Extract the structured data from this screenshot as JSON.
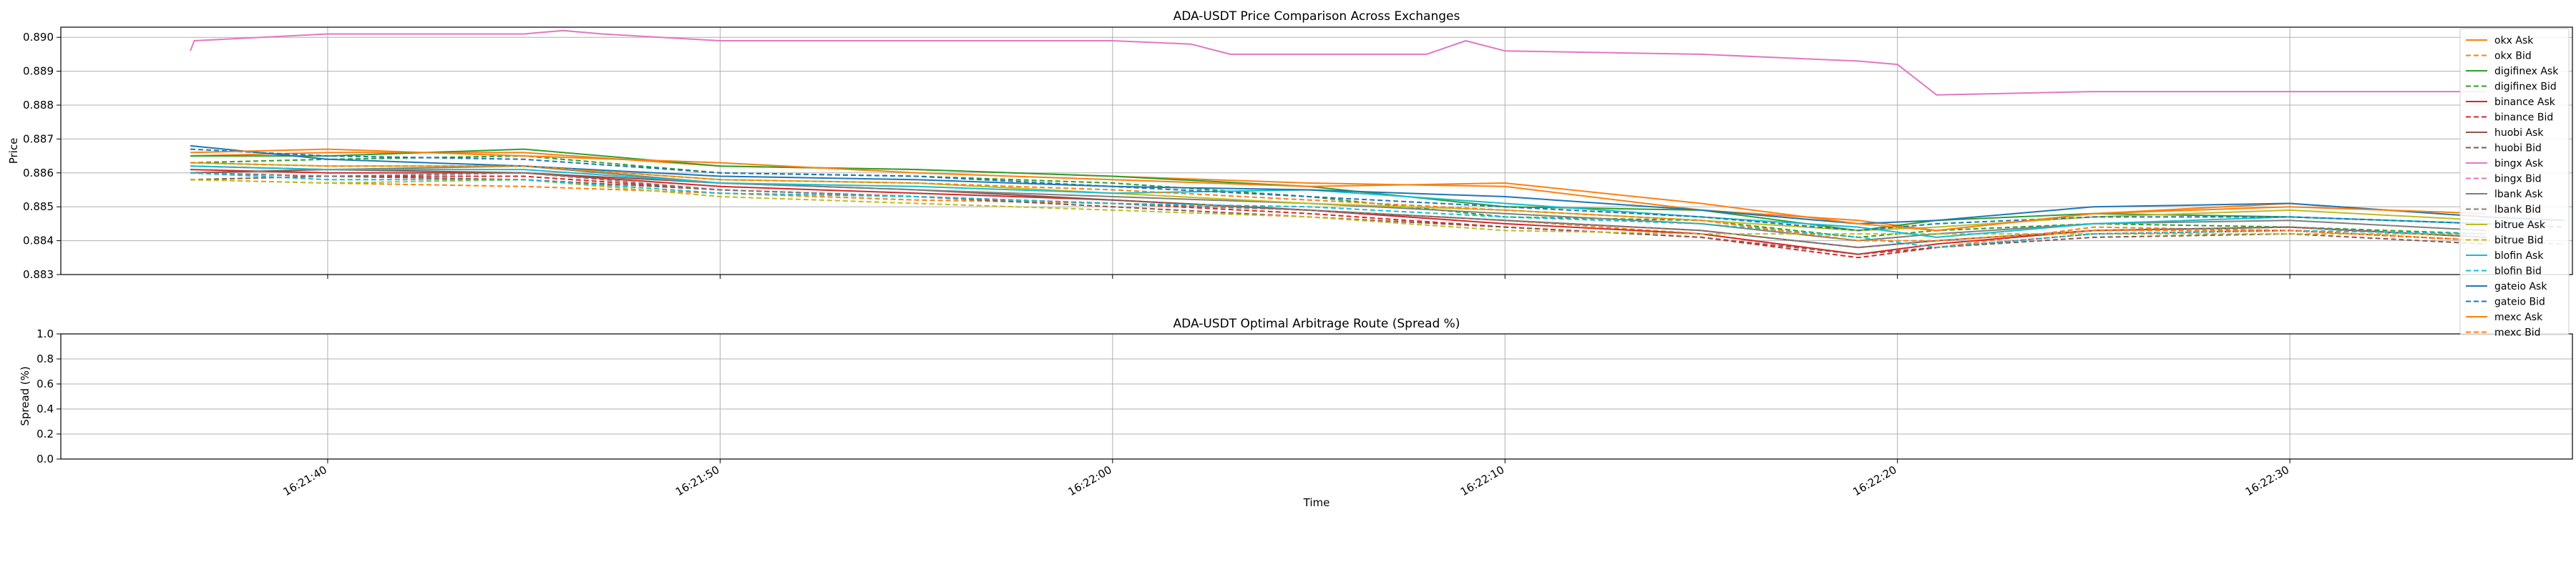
{
  "chart_data": [
    {
      "type": "line",
      "title": "ADA-USDT Price Comparison Across Exchanges",
      "xlabel": "",
      "ylabel": "Price",
      "xlim": [
        "16:21:33.2",
        "16:22:37.2"
      ],
      "ylim": [
        0.883,
        0.8903
      ],
      "yticks": [
        0.883,
        0.884,
        0.885,
        0.886,
        0.887,
        0.888,
        0.889,
        0.89
      ],
      "ytick_labels": [
        "0.883",
        "0.884",
        "0.885",
        "0.886",
        "0.887",
        "0.888",
        "0.889",
        "0.890"
      ],
      "xticks": [
        "16:21:40",
        "16:21:50",
        "16:22:00",
        "16:22:10",
        "16:22:20",
        "16:22:30"
      ],
      "grid": true,
      "legend_position": "top-right",
      "series": [
        {
          "name": "okx Ask",
          "color": "#ff7f0e",
          "dash": false,
          "x": [
            "16:21:36.5",
            "16:21:40",
            "16:21:45",
            "16:21:50",
            "16:21:55",
            "16:22:00",
            "16:22:05",
            "16:22:10",
            "16:22:15",
            "16:22:19",
            "16:22:21",
            "16:22:25",
            "16:22:30",
            "16:22:35"
          ],
          "y": [
            0.8865,
            0.8866,
            0.8866,
            0.8862,
            0.8861,
            0.8859,
            0.8857,
            0.8856,
            0.8849,
            0.8846,
            0.8843,
            0.8848,
            0.8851,
            0.8847
          ]
        },
        {
          "name": "okx Bid",
          "color": "#ff7f0e",
          "dash": true,
          "x": [
            "16:21:36.5",
            "16:21:40",
            "16:21:45",
            "16:21:50",
            "16:21:55",
            "16:22:00",
            "16:22:05",
            "16:22:10",
            "16:22:15",
            "16:22:19",
            "16:22:21",
            "16:22:25",
            "16:22:30",
            "16:22:35"
          ],
          "y": [
            0.8858,
            0.8857,
            0.8856,
            0.8854,
            0.8852,
            0.8851,
            0.8849,
            0.8846,
            0.8842,
            0.8836,
            0.8838,
            0.8844,
            0.8843,
            0.884
          ]
        },
        {
          "name": "digifinex Ask",
          "color": "#2ca02c",
          "dash": false,
          "x": [
            "16:21:36.5",
            "16:21:40",
            "16:21:45",
            "16:21:50",
            "16:21:55",
            "16:22:00",
            "16:22:05",
            "16:22:10",
            "16:22:15",
            "16:22:19",
            "16:22:21",
            "16:22:25",
            "16:22:30",
            "16:22:35"
          ],
          "y": [
            0.8865,
            0.8865,
            0.8867,
            0.8862,
            0.8861,
            0.8859,
            0.8856,
            0.885,
            0.8849,
            0.8843,
            0.8846,
            0.8848,
            0.8847,
            0.8845
          ]
        },
        {
          "name": "digifinex Bid",
          "color": "#2ca02c",
          "dash": true,
          "x": [
            "16:21:36.5",
            "16:21:40",
            "16:21:45",
            "16:21:50",
            "16:21:55",
            "16:22:00",
            "16:22:05",
            "16:22:10",
            "16:22:15",
            "16:22:19",
            "16:22:21",
            "16:22:25",
            "16:22:30",
            "16:22:35"
          ],
          "y": [
            0.8863,
            0.8864,
            0.8865,
            0.886,
            0.8859,
            0.8857,
            0.8853,
            0.8847,
            0.8846,
            0.8841,
            0.8843,
            0.8845,
            0.8844,
            0.8842
          ]
        },
        {
          "name": "binance Ask",
          "color": "#d62728",
          "dash": false,
          "x": [
            "16:21:36.5",
            "16:21:40",
            "16:21:45",
            "16:21:50",
            "16:21:55",
            "16:22:00",
            "16:22:05",
            "16:22:10",
            "16:22:15",
            "16:22:19",
            "16:22:21",
            "16:22:25",
            "16:22:30",
            "16:22:35"
          ],
          "y": [
            0.8861,
            0.886,
            0.886,
            0.8856,
            0.8854,
            0.8852,
            0.8849,
            0.8845,
            0.8842,
            0.8836,
            0.8839,
            0.8843,
            0.8844,
            0.8841
          ]
        },
        {
          "name": "binance Bid",
          "color": "#d62728",
          "dash": true,
          "x": [
            "16:21:36.5",
            "16:21:40",
            "16:21:45",
            "16:21:50",
            "16:21:55",
            "16:22:00",
            "16:22:05",
            "16:22:10",
            "16:22:15",
            "16:22:19",
            "16:22:21",
            "16:22:25",
            "16:22:30",
            "16:22:35"
          ],
          "y": [
            0.886,
            0.8859,
            0.8859,
            0.8855,
            0.8853,
            0.8851,
            0.8848,
            0.8844,
            0.8841,
            0.8835,
            0.8838,
            0.8842,
            0.8843,
            0.884
          ]
        },
        {
          "name": "huobi Ask",
          "color": "#8c564b",
          "dash": false,
          "x": [
            "16:21:36.5",
            "16:21:40",
            "16:21:45",
            "16:21:50",
            "16:21:55",
            "16:22:00",
            "16:22:05",
            "16:22:10",
            "16:22:15",
            "16:22:19",
            "16:22:21",
            "16:22:25",
            "16:22:30",
            "16:22:35"
          ],
          "y": [
            0.886,
            0.8861,
            0.886,
            0.8857,
            0.8855,
            0.8852,
            0.8849,
            0.8846,
            0.8843,
            0.8838,
            0.884,
            0.8843,
            0.8844,
            0.8841
          ]
        },
        {
          "name": "huobi Bid",
          "color": "#8c564b",
          "dash": true,
          "x": [
            "16:21:36.5",
            "16:21:40",
            "16:21:45",
            "16:21:50",
            "16:21:55",
            "16:22:00",
            "16:22:05",
            "16:22:10",
            "16:22:15",
            "16:22:19",
            "16:22:21",
            "16:22:25",
            "16:22:30",
            "16:22:35"
          ],
          "y": [
            0.8858,
            0.8859,
            0.8858,
            0.8855,
            0.8853,
            0.885,
            0.8847,
            0.8844,
            0.8841,
            0.8836,
            0.8838,
            0.8841,
            0.8842,
            0.8839
          ]
        },
        {
          "name": "bingx Ask",
          "color": "#e377c2",
          "dash": false,
          "x": [
            "16:21:36.5",
            "16:21:36.6",
            "16:21:40",
            "16:21:45",
            "16:21:46",
            "16:21:47",
            "16:21:50",
            "16:22:00",
            "16:22:02",
            "16:22:03",
            "16:22:05",
            "16:22:08",
            "16:22:09",
            "16:22:10",
            "16:22:15",
            "16:22:19",
            "16:22:20",
            "16:22:21",
            "16:22:25",
            "16:22:35"
          ],
          "y": [
            0.8896,
            0.8899,
            0.8901,
            0.8901,
            0.8902,
            0.8901,
            0.8899,
            0.8899,
            0.8898,
            0.8895,
            0.8895,
            0.8895,
            0.8899,
            0.8896,
            0.8895,
            0.8893,
            0.8892,
            0.8883,
            0.8884,
            0.8884
          ]
        },
        {
          "name": "bingx Bid",
          "color": "#e377c2",
          "dash": true,
          "x": [],
          "y": []
        },
        {
          "name": "lbank Ask",
          "color": "#7f7f7f",
          "dash": false,
          "x": [
            "16:21:36.5",
            "16:21:40",
            "16:21:45",
            "16:21:50",
            "16:21:55",
            "16:22:00",
            "16:22:05",
            "16:22:10",
            "16:22:15",
            "16:22:19",
            "16:22:21",
            "16:22:25",
            "16:22:30",
            "16:22:35"
          ],
          "y": [
            0.8862,
            0.8861,
            0.8862,
            0.8857,
            0.8855,
            0.8853,
            0.8851,
            0.8848,
            0.8845,
            0.884,
            0.8842,
            0.8845,
            0.8846,
            0.8843
          ]
        },
        {
          "name": "lbank Bid",
          "color": "#7f7f7f",
          "dash": true,
          "x": [
            "16:21:36.5",
            "16:21:40",
            "16:21:45",
            "16:21:50",
            "16:21:55",
            "16:22:00",
            "16:22:05",
            "16:22:10",
            "16:22:15",
            "16:22:19",
            "16:22:21",
            "16:22:25",
            "16:22:30",
            "16:22:35"
          ],
          "y": [
            0.886,
            0.8859,
            0.886,
            0.8855,
            0.8853,
            0.8851,
            0.8849,
            0.8846,
            0.8843,
            0.8838,
            0.884,
            0.8843,
            0.8844,
            0.8841
          ]
        },
        {
          "name": "bitrue Ask",
          "color": "#bcbd22",
          "dash": false,
          "x": [
            "16:21:36.5",
            "16:21:40",
            "16:21:45",
            "16:21:50",
            "16:21:55",
            "16:22:00",
            "16:22:05",
            "16:22:10",
            "16:22:15",
            "16:22:19",
            "16:22:21",
            "16:22:25",
            "16:22:30",
            "16:22:35"
          ],
          "y": [
            0.8863,
            0.8862,
            0.8862,
            0.8858,
            0.8857,
            0.8854,
            0.8851,
            0.8849,
            0.8846,
            0.8843,
            0.8844,
            0.8847,
            0.8849,
            0.8846
          ]
        },
        {
          "name": "bitrue Bid",
          "color": "#bcbd22",
          "dash": true,
          "x": [
            "16:21:36.5",
            "16:21:40",
            "16:21:45",
            "16:21:50",
            "16:21:55",
            "16:22:00",
            "16:22:05",
            "16:22:10",
            "16:22:15",
            "16:22:19",
            "16:22:21",
            "16:22:25",
            "16:22:30",
            "16:22:35"
          ],
          "y": [
            0.8858,
            0.8857,
            0.8858,
            0.8853,
            0.8851,
            0.8849,
            0.8847,
            0.8843,
            0.8842,
            0.8842,
            0.8842,
            0.8842,
            0.8842,
            0.8842
          ]
        },
        {
          "name": "blofin Ask",
          "color": "#17becf",
          "dash": false,
          "x": [
            "16:21:36.5",
            "16:21:40",
            "16:21:45",
            "16:21:50",
            "16:21:55",
            "16:22:00",
            "16:22:05",
            "16:22:10",
            "16:22:15",
            "16:22:19",
            "16:22:21",
            "16:22:25",
            "16:22:30",
            "16:22:35"
          ],
          "y": [
            0.8862,
            0.8861,
            0.8861,
            0.8857,
            0.8856,
            0.8854,
            0.8855,
            0.8851,
            0.8847,
            0.8844,
            0.8841,
            0.8845,
            0.8847,
            0.8845
          ]
        },
        {
          "name": "blofin Bid",
          "color": "#17becf",
          "dash": true,
          "x": [
            "16:21:36.5",
            "16:21:40",
            "16:21:45",
            "16:21:50",
            "16:21:55",
            "16:22:00",
            "16:22:05",
            "16:22:10",
            "16:22:15",
            "16:22:19",
            "16:22:21",
            "16:22:25",
            "16:22:30",
            "16:22:35"
          ],
          "y": [
            0.886,
            0.8858,
            0.8858,
            0.8854,
            0.8853,
            0.8851,
            0.885,
            0.8847,
            0.8845,
            0.8841,
            0.8838,
            0.8842,
            0.8843,
            0.8842
          ]
        },
        {
          "name": "gateio Ask",
          "color": "#1f77b4",
          "dash": false,
          "x": [
            "16:21:36.5",
            "16:21:40",
            "16:21:45",
            "16:21:50",
            "16:21:55",
            "16:22:00",
            "16:22:05",
            "16:22:10",
            "16:22:15",
            "16:22:19",
            "16:22:21",
            "16:22:25",
            "16:22:30",
            "16:22:35",
            "16:22:37"
          ],
          "y": [
            0.8868,
            0.8864,
            0.8862,
            0.8859,
            0.8858,
            0.8856,
            0.8855,
            0.8853,
            0.8849,
            0.8845,
            0.8846,
            0.885,
            0.8851,
            0.8847,
            0.8846
          ]
        },
        {
          "name": "gateio Bid",
          "color": "#1f77b4",
          "dash": true,
          "x": [
            "16:21:36.5",
            "16:21:40",
            "16:21:45",
            "16:21:50",
            "16:21:55",
            "16:22:00",
            "16:22:05",
            "16:22:10",
            "16:22:15",
            "16:22:19",
            "16:22:21",
            "16:22:25",
            "16:22:30",
            "16:22:35",
            "16:22:37"
          ],
          "y": [
            0.8867,
            0.8865,
            0.8864,
            0.886,
            0.8859,
            0.8856,
            0.8853,
            0.885,
            0.8847,
            0.8843,
            0.8845,
            0.8847,
            0.8847,
            0.8845,
            0.8844
          ]
        },
        {
          "name": "mexc Ask",
          "color": "#ff7f0e",
          "dash": false,
          "x": [
            "16:21:36.5",
            "16:21:40",
            "16:21:45",
            "16:21:50",
            "16:21:55",
            "16:22:00",
            "16:22:05",
            "16:22:10",
            "16:22:15",
            "16:22:19",
            "16:22:21",
            "16:22:25",
            "16:22:30",
            "16:22:35"
          ],
          "y": [
            0.8866,
            0.8867,
            0.8865,
            0.8863,
            0.886,
            0.8858,
            0.8856,
            0.8857,
            0.8851,
            0.8845,
            0.8843,
            0.8848,
            0.885,
            0.8848
          ]
        },
        {
          "name": "mexc Bid",
          "color": "#ff7f0e",
          "dash": true,
          "x": [
            "16:21:36.5",
            "16:21:40",
            "16:21:45",
            "16:21:50",
            "16:21:55",
            "16:22:00",
            "16:22:05",
            "16:22:10",
            "16:22:15",
            "16:22:19",
            "16:22:21",
            "16:22:25",
            "16:22:30",
            "16:22:35",
            "16:22:37"
          ],
          "y": [
            0.8863,
            0.8862,
            0.8862,
            0.8858,
            0.8857,
            0.8855,
            0.8852,
            0.8849,
            0.8846,
            0.884,
            0.884,
            0.8843,
            0.8843,
            0.884,
            0.8839
          ]
        }
      ]
    },
    {
      "type": "line",
      "title": "ADA-USDT Optimal Arbitrage Route (Spread %)",
      "xlabel": "Time",
      "ylabel": "Spread (%)",
      "xlim": [
        "16:21:33.2",
        "16:22:37.2"
      ],
      "ylim": [
        0.0,
        1.0
      ],
      "yticks": [
        0.0,
        0.2,
        0.4,
        0.6,
        0.8,
        1.0
      ],
      "ytick_labels": [
        "0.0",
        "0.2",
        "0.4",
        "0.6",
        "0.8",
        "1.0"
      ],
      "xticks": [
        "16:21:40",
        "16:21:50",
        "16:22:00",
        "16:22:10",
        "16:22:20",
        "16:22:30"
      ],
      "xtick_labels": [
        "16:21:40",
        "16:21:50",
        "16:22:00",
        "16:22:10",
        "16:22:20",
        "16:22:30"
      ],
      "grid": true,
      "series": []
    }
  ]
}
